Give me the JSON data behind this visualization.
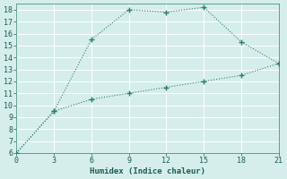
{
  "xlabel": "Humidex (Indice chaleur)",
  "background_color": "#d6eeeb",
  "grid_color": "#ffffff",
  "line_color": "#2e7d6e",
  "xlim": [
    0,
    21
  ],
  "ylim": [
    6,
    18.5
  ],
  "xticks": [
    0,
    3,
    6,
    9,
    12,
    15,
    18,
    21
  ],
  "yticks": [
    6,
    7,
    8,
    9,
    10,
    11,
    12,
    13,
    14,
    15,
    16,
    17,
    18
  ],
  "curve1_x": [
    0,
    3,
    6,
    9,
    12,
    15,
    18,
    21
  ],
  "curve1_y": [
    6,
    9.5,
    15.5,
    18,
    17.8,
    18.2,
    15.3,
    13.5
  ],
  "curve2_x": [
    0,
    3,
    6,
    9,
    12,
    15,
    18,
    21
  ],
  "curve2_y": [
    6,
    9.5,
    10.5,
    11.0,
    11.5,
    12.0,
    12.5,
    13.5
  ]
}
